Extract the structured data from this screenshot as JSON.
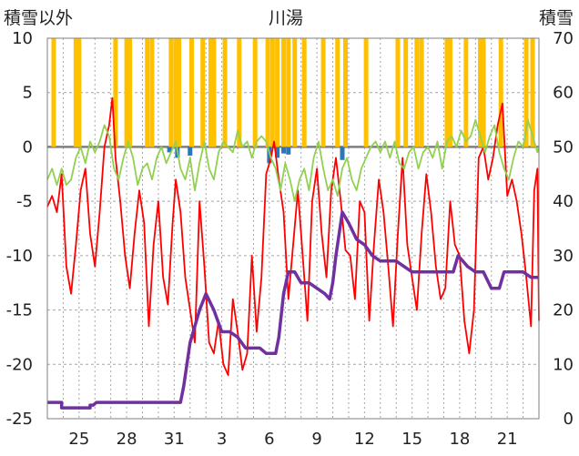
{
  "chart_data": {
    "type": "line",
    "title": "川湯",
    "left_axis_label": "積雪以外",
    "right_axis_label": "積雪",
    "x_tick_labels": [
      "25",
      "28",
      "31",
      "3",
      "6",
      "9",
      "12",
      "15",
      "18",
      "21"
    ],
    "x_tick_days": [
      2,
      5,
      8,
      11,
      14,
      17,
      20,
      23,
      26,
      29
    ],
    "x_range_days": [
      0,
      31
    ],
    "left_ylim": [
      -25,
      10
    ],
    "left_yticks": [
      "10",
      "5",
      "0",
      "-5",
      "-10",
      "-15",
      "-20",
      "-25"
    ],
    "right_ylim": [
      0,
      70
    ],
    "right_yticks": [
      "70",
      "60",
      "50",
      "40",
      "30",
      "20",
      "10",
      "0"
    ],
    "grid": true,
    "legend": "none",
    "colors": {
      "precip": "#ffc000",
      "below_zero": "#2e75b6",
      "temp": "#ff0000",
      "green": "#92d050",
      "snow": "#7030a0",
      "zero_line": "#7f7f7f",
      "grid": "#a6a6a6"
    },
    "series": [
      {
        "key": "temp",
        "axis": "left",
        "values": [
          [
            0.0,
            -5.5
          ],
          [
            0.3,
            -4.5
          ],
          [
            0.6,
            -6.0
          ],
          [
            0.9,
            -2.5
          ],
          [
            1.2,
            -11.0
          ],
          [
            1.5,
            -13.5
          ],
          [
            1.8,
            -9.0
          ],
          [
            2.1,
            -4.0
          ],
          [
            2.4,
            -2.0
          ],
          [
            2.7,
            -8.0
          ],
          [
            3.0,
            -11.0
          ],
          [
            3.3,
            -6.0
          ],
          [
            3.6,
            0.0
          ],
          [
            3.9,
            2.0
          ],
          [
            4.1,
            4.5
          ],
          [
            4.3,
            -1.0
          ],
          [
            4.6,
            -5.0
          ],
          [
            4.9,
            -10.0
          ],
          [
            5.2,
            -13.0
          ],
          [
            5.5,
            -8.0
          ],
          [
            5.8,
            -4.0
          ],
          [
            6.1,
            -7.0
          ],
          [
            6.4,
            -16.5
          ],
          [
            6.7,
            -9.0
          ],
          [
            7.0,
            -5.0
          ],
          [
            7.3,
            -12.0
          ],
          [
            7.6,
            -14.5
          ],
          [
            7.9,
            -7.0
          ],
          [
            8.1,
            -3.0
          ],
          [
            8.4,
            -6.0
          ],
          [
            8.7,
            -12.0
          ],
          [
            9.0,
            -15.0
          ],
          [
            9.3,
            -18.0
          ],
          [
            9.6,
            -5.0
          ],
          [
            9.9,
            -11.0
          ],
          [
            10.2,
            -18.0
          ],
          [
            10.5,
            -19.0
          ],
          [
            10.8,
            -16.0
          ],
          [
            11.1,
            -20.0
          ],
          [
            11.4,
            -21.0
          ],
          [
            11.7,
            -14.0
          ],
          [
            12.0,
            -17.0
          ],
          [
            12.3,
            -20.5
          ],
          [
            12.6,
            -19.0
          ],
          [
            12.9,
            -10.0
          ],
          [
            13.2,
            -17.0
          ],
          [
            13.5,
            -12.0
          ],
          [
            13.8,
            -2.5
          ],
          [
            14.1,
            -1.0
          ],
          [
            14.3,
            0.5
          ],
          [
            14.6,
            -3.0
          ],
          [
            14.9,
            -6.0
          ],
          [
            15.2,
            -14.0
          ],
          [
            15.5,
            -9.0
          ],
          [
            15.8,
            -4.0
          ],
          [
            16.1,
            -10.0
          ],
          [
            16.4,
            -16.0
          ],
          [
            16.7,
            -5.0
          ],
          [
            17.0,
            -2.0
          ],
          [
            17.3,
            -8.0
          ],
          [
            17.6,
            -12.0
          ],
          [
            17.9,
            -4.0
          ],
          [
            18.2,
            -1.0
          ],
          [
            18.5,
            -5.0
          ],
          [
            18.8,
            -9.5
          ],
          [
            19.1,
            -10.0
          ],
          [
            19.4,
            -14.0
          ],
          [
            19.7,
            -5.0
          ],
          [
            20.0,
            -6.0
          ],
          [
            20.3,
            -16.0
          ],
          [
            20.6,
            -9.0
          ],
          [
            20.9,
            -3.0
          ],
          [
            21.2,
            -6.0
          ],
          [
            21.5,
            -11.0
          ],
          [
            21.8,
            -16.5
          ],
          [
            22.1,
            -8.0
          ],
          [
            22.4,
            -1.0
          ],
          [
            22.7,
            -9.0
          ],
          [
            23.0,
            -12.0
          ],
          [
            23.3,
            -15.0
          ],
          [
            23.6,
            -8.0
          ],
          [
            23.9,
            -2.5
          ],
          [
            24.2,
            -6.0
          ],
          [
            24.5,
            -11.0
          ],
          [
            24.8,
            -14.0
          ],
          [
            25.1,
            -13.0
          ],
          [
            25.4,
            -5.0
          ],
          [
            25.7,
            -9.0
          ],
          [
            26.0,
            -10.0
          ],
          [
            26.3,
            -16.0
          ],
          [
            26.6,
            -19.0
          ],
          [
            26.9,
            -15.0
          ],
          [
            27.2,
            -1.0
          ],
          [
            27.5,
            0.0
          ],
          [
            27.8,
            -3.0
          ],
          [
            28.1,
            -1.0
          ],
          [
            28.4,
            2.0
          ],
          [
            28.7,
            4.0
          ],
          [
            29.0,
            -4.5
          ],
          [
            29.3,
            -3.0
          ],
          [
            29.6,
            -5.0
          ],
          [
            29.9,
            -8.0
          ],
          [
            30.2,
            -12.0
          ],
          [
            30.5,
            -16.5
          ],
          [
            30.7,
            -4.0
          ],
          [
            30.9,
            -2.0
          ],
          [
            31.0,
            -16.0
          ]
        ]
      },
      {
        "key": "green",
        "axis": "left",
        "values": [
          [
            0.0,
            -3.0
          ],
          [
            0.3,
            -2.0
          ],
          [
            0.6,
            -3.5
          ],
          [
            0.9,
            -2.0
          ],
          [
            1.2,
            -3.5
          ],
          [
            1.5,
            -3.0
          ],
          [
            1.8,
            -1.0
          ],
          [
            2.1,
            0.0
          ],
          [
            2.4,
            -1.5
          ],
          [
            2.7,
            0.5
          ],
          [
            3.0,
            -0.5
          ],
          [
            3.3,
            0.5
          ],
          [
            3.6,
            2.0
          ],
          [
            3.9,
            1.0
          ],
          [
            4.2,
            -2.0
          ],
          [
            4.5,
            -3.0
          ],
          [
            4.8,
            -1.0
          ],
          [
            5.1,
            0.5
          ],
          [
            5.4,
            -1.0
          ],
          [
            5.7,
            -3.5
          ],
          [
            6.0,
            -2.0
          ],
          [
            6.3,
            -1.5
          ],
          [
            6.6,
            -3.0
          ],
          [
            6.9,
            -1.0
          ],
          [
            7.2,
            0.0
          ],
          [
            7.5,
            -1.5
          ],
          [
            7.8,
            -0.5
          ],
          [
            8.1,
            0.5
          ],
          [
            8.4,
            -2.0
          ],
          [
            8.7,
            -3.0
          ],
          [
            9.0,
            -1.0
          ],
          [
            9.3,
            -4.0
          ],
          [
            9.6,
            -1.5
          ],
          [
            9.9,
            0.5
          ],
          [
            10.2,
            -2.0
          ],
          [
            10.5,
            -3.0
          ],
          [
            10.8,
            -0.5
          ],
          [
            11.1,
            0.5
          ],
          [
            11.4,
            0.0
          ],
          [
            11.7,
            -0.5
          ],
          [
            12.0,
            1.5
          ],
          [
            12.3,
            0.0
          ],
          [
            12.6,
            0.5
          ],
          [
            12.9,
            -1.0
          ],
          [
            13.2,
            0.5
          ],
          [
            13.5,
            1.0
          ],
          [
            13.8,
            0.5
          ],
          [
            14.1,
            -1.0
          ],
          [
            14.4,
            -2.0
          ],
          [
            14.7,
            -4.0
          ],
          [
            15.0,
            -1.5
          ],
          [
            15.3,
            -3.0
          ],
          [
            15.6,
            -5.0
          ],
          [
            15.9,
            -3.0
          ],
          [
            16.2,
            -2.0
          ],
          [
            16.5,
            -4.0
          ],
          [
            16.8,
            -1.0
          ],
          [
            17.1,
            0.5
          ],
          [
            17.4,
            -2.0
          ],
          [
            17.7,
            -4.0
          ],
          [
            18.0,
            -3.0
          ],
          [
            18.3,
            -4.5
          ],
          [
            18.6,
            -2.0
          ],
          [
            18.9,
            -1.0
          ],
          [
            19.2,
            -3.0
          ],
          [
            19.5,
            -4.0
          ],
          [
            19.8,
            -2.0
          ],
          [
            20.1,
            -1.0
          ],
          [
            20.4,
            0.0
          ],
          [
            20.7,
            0.5
          ],
          [
            21.0,
            -0.5
          ],
          [
            21.3,
            0.5
          ],
          [
            21.6,
            -1.0
          ],
          [
            21.9,
            0.5
          ],
          [
            22.2,
            -1.5
          ],
          [
            22.5,
            -2.0
          ],
          [
            22.8,
            -0.5
          ],
          [
            23.1,
            0.0
          ],
          [
            23.4,
            -2.0
          ],
          [
            23.7,
            -0.5
          ],
          [
            24.0,
            0.0
          ],
          [
            24.3,
            -1.0
          ],
          [
            24.6,
            0.5
          ],
          [
            24.9,
            -2.0
          ],
          [
            25.2,
            0.5
          ],
          [
            25.5,
            1.0
          ],
          [
            25.8,
            0.0
          ],
          [
            26.1,
            1.5
          ],
          [
            26.4,
            0.5
          ],
          [
            26.7,
            1.0
          ],
          [
            27.0,
            2.5
          ],
          [
            27.3,
            1.0
          ],
          [
            27.6,
            -0.5
          ],
          [
            27.9,
            1.0
          ],
          [
            28.2,
            2.0
          ],
          [
            28.5,
            -0.5
          ],
          [
            28.8,
            -2.0
          ],
          [
            29.1,
            -3.0
          ],
          [
            29.4,
            -1.0
          ],
          [
            29.7,
            0.5
          ],
          [
            30.0,
            0.0
          ],
          [
            30.3,
            2.5
          ],
          [
            30.6,
            1.0
          ],
          [
            30.9,
            -0.5
          ],
          [
            31.0,
            0.0
          ]
        ]
      },
      {
        "key": "snow",
        "axis": "right",
        "values": [
          [
            0,
            3
          ],
          [
            0.9,
            3
          ],
          [
            0.9,
            2
          ],
          [
            2.7,
            2
          ],
          [
            2.7,
            2.5
          ],
          [
            2.9,
            2.5
          ],
          [
            3.1,
            3
          ],
          [
            7.9,
            3
          ],
          [
            8.4,
            3
          ],
          [
            8.6,
            6
          ],
          [
            8.8,
            10
          ],
          [
            9.0,
            14
          ],
          [
            9.3,
            17
          ],
          [
            9.6,
            20
          ],
          [
            10.0,
            23
          ],
          [
            10.5,
            20
          ],
          [
            11.0,
            16
          ],
          [
            11.5,
            16
          ],
          [
            12.0,
            15
          ],
          [
            12.5,
            13
          ],
          [
            13.0,
            13
          ],
          [
            13.4,
            13
          ],
          [
            13.8,
            12
          ],
          [
            14.2,
            12
          ],
          [
            14.4,
            12
          ],
          [
            14.6,
            15
          ],
          [
            14.9,
            23
          ],
          [
            15.2,
            27
          ],
          [
            15.6,
            27
          ],
          [
            16.0,
            25
          ],
          [
            16.5,
            25
          ],
          [
            17.0,
            24
          ],
          [
            17.5,
            23
          ],
          [
            17.8,
            22
          ],
          [
            18.0,
            25
          ],
          [
            18.2,
            30
          ],
          [
            18.6,
            38
          ],
          [
            19.0,
            36
          ],
          [
            19.5,
            33
          ],
          [
            20.0,
            32
          ],
          [
            20.5,
            30
          ],
          [
            21.0,
            29
          ],
          [
            21.5,
            29
          ],
          [
            22.0,
            29
          ],
          [
            22.5,
            28
          ],
          [
            23.0,
            27
          ],
          [
            24.0,
            27
          ],
          [
            25.0,
            27
          ],
          [
            25.6,
            27
          ],
          [
            25.9,
            30
          ],
          [
            26.2,
            29
          ],
          [
            26.5,
            28
          ],
          [
            27.0,
            27
          ],
          [
            27.5,
            27
          ],
          [
            28.0,
            24
          ],
          [
            28.5,
            24
          ],
          [
            28.8,
            27
          ],
          [
            29.5,
            27
          ],
          [
            30.0,
            27
          ],
          [
            30.5,
            26
          ],
          [
            31.0,
            26
          ]
        ]
      }
    ],
    "precip_bars_days": [
      0.4,
      1.8,
      2.0,
      4.3,
      5.0,
      5.2,
      6.3,
      6.6,
      7.8,
      8.1,
      8.3,
      9.1,
      9.8,
      10.3,
      10.5,
      11.2,
      12.1,
      13.1,
      13.9,
      14.2,
      14.5,
      14.9,
      15.2,
      15.6,
      16.2,
      17.4,
      18.3,
      18.8,
      20.1,
      22.1,
      22.6,
      23.3,
      23.6,
      25.2,
      25.4,
      26.4,
      27.3,
      27.5,
      28.6,
      30.2,
      30.6
    ],
    "below_zero_bars": [
      [
        7.7,
        -0.5
      ],
      [
        8.2,
        -1.0
      ],
      [
        9.0,
        -0.8
      ],
      [
        14.0,
        -1.5
      ],
      [
        14.5,
        -1.0
      ],
      [
        14.9,
        -0.6
      ],
      [
        15.2,
        -0.7
      ],
      [
        18.6,
        -1.2
      ]
    ]
  }
}
